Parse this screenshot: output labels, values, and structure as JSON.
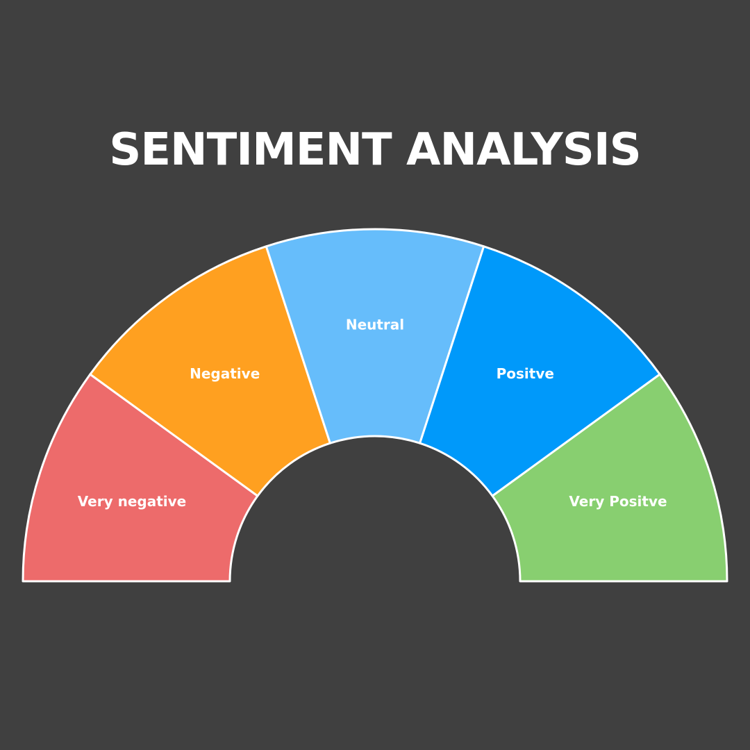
{
  "chart_data": {
    "type": "pie",
    "subtype": "half-donut gauge",
    "title": "SENTIMENT ANALYSIS",
    "categories": [
      "Very negative",
      "Negative",
      "Neutral",
      "Positve",
      "Very Positve"
    ],
    "values": [
      36,
      36,
      36,
      36,
      36
    ],
    "colors": [
      "#ED6B6B",
      "#FFA020",
      "#66BDFB",
      "#0099FA",
      "#88CF70"
    ],
    "background": "#404040",
    "segment_border_color": "#FFFFFF",
    "legend": "none"
  }
}
